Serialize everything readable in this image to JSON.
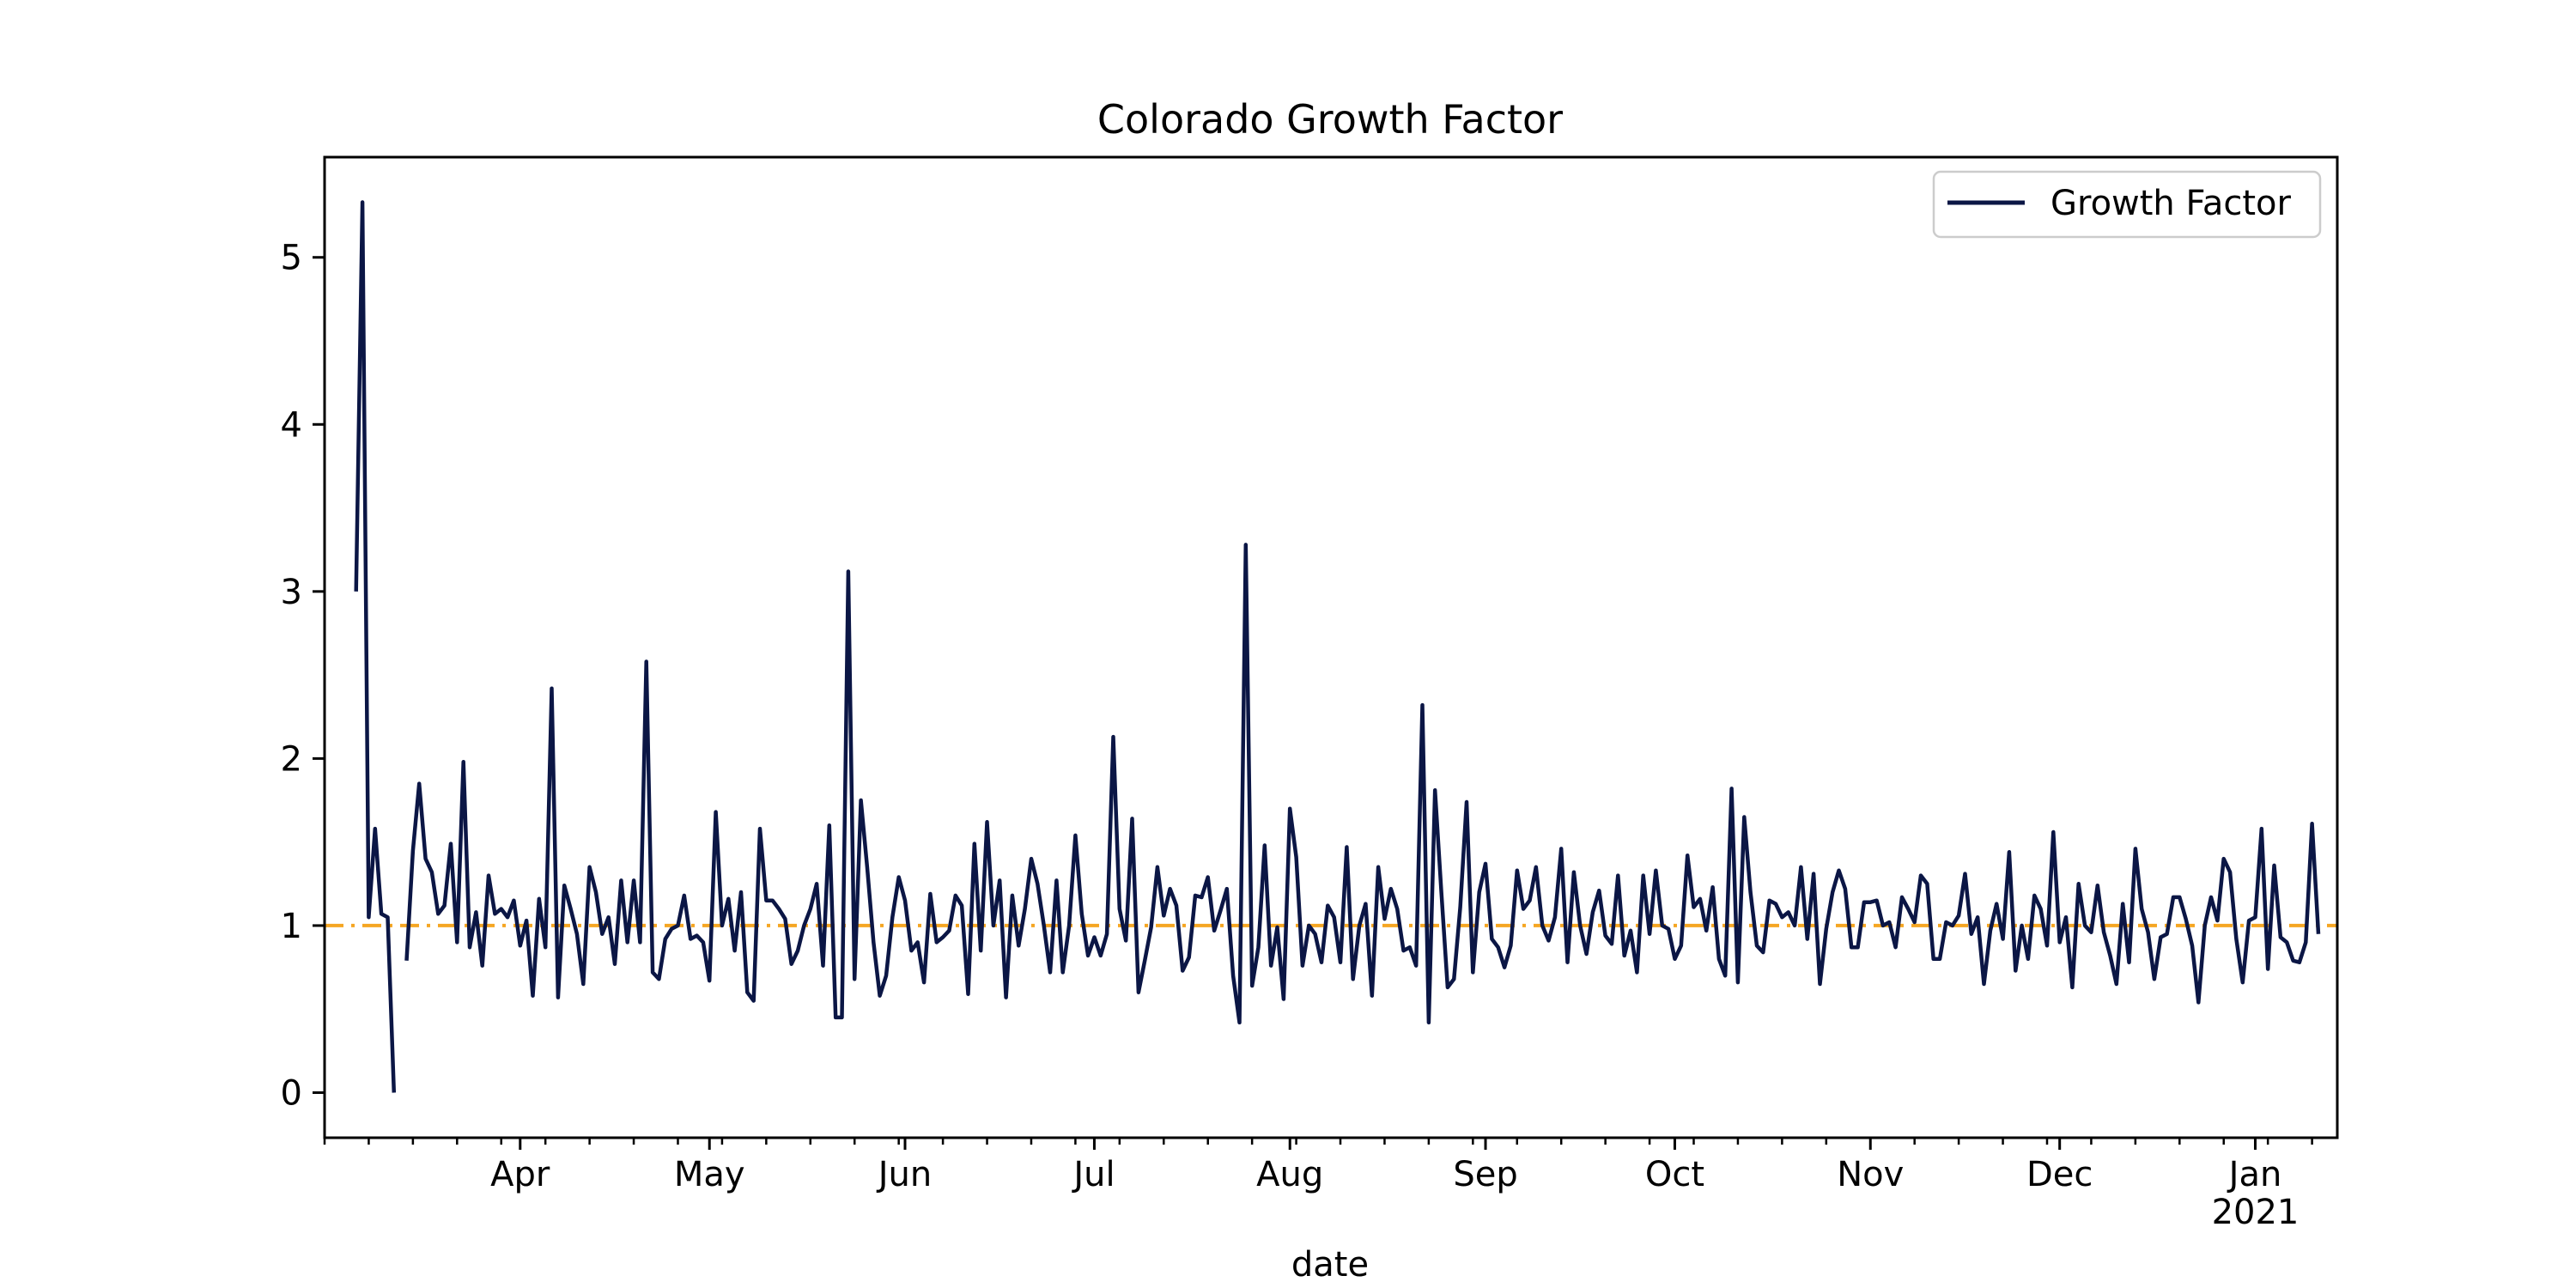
{
  "chart_data": {
    "type": "line",
    "title": "Colorado Growth Factor",
    "xlabel": "date",
    "ylabel": "",
    "x_start": "2020-03-06",
    "x_range": [
      "2020-03-01",
      "2021-01-14"
    ],
    "ylim": [
      -0.27,
      5.6
    ],
    "yticks": [
      0,
      1,
      2,
      3,
      4,
      5
    ],
    "xticks": [
      {
        "date": "2020-04-01",
        "label": "Apr",
        "sublabel": ""
      },
      {
        "date": "2020-05-01",
        "label": "May",
        "sublabel": ""
      },
      {
        "date": "2020-06-01",
        "label": "Jun",
        "sublabel": ""
      },
      {
        "date": "2020-07-01",
        "label": "Jul",
        "sublabel": ""
      },
      {
        "date": "2020-08-01",
        "label": "Aug",
        "sublabel": ""
      },
      {
        "date": "2020-09-01",
        "label": "Sep",
        "sublabel": ""
      },
      {
        "date": "2020-10-01",
        "label": "Oct",
        "sublabel": ""
      },
      {
        "date": "2020-11-01",
        "label": "Nov",
        "sublabel": ""
      },
      {
        "date": "2020-12-01",
        "label": "Dec",
        "sublabel": ""
      },
      {
        "date": "2021-01-01",
        "label": "Jan",
        "sublabel": "2021"
      }
    ],
    "grid": false,
    "legend_position": "top-right",
    "series": [
      {
        "name": "Growth Factor",
        "color": "#0b1645",
        "values": [
          3.0,
          5.33,
          1.05,
          1.58,
          1.07,
          1.05,
          0.0,
          null,
          0.79,
          1.45,
          1.85,
          1.4,
          1.32,
          1.07,
          1.12,
          1.49,
          0.9,
          1.98,
          0.87,
          1.08,
          0.76,
          1.3,
          1.07,
          1.1,
          1.05,
          1.15,
          0.88,
          1.03,
          0.58,
          1.16,
          0.87,
          2.42,
          0.57,
          1.24,
          1.1,
          0.95,
          0.65,
          1.35,
          1.2,
          0.95,
          1.05,
          0.77,
          1.27,
          0.9,
          1.27,
          0.9,
          2.58,
          0.72,
          0.68,
          0.92,
          0.98,
          1.0,
          1.18,
          0.92,
          0.94,
          0.9,
          0.67,
          1.68,
          1.0,
          1.16,
          0.85,
          1.2,
          0.6,
          0.55,
          1.58,
          1.15,
          1.15,
          1.1,
          1.04,
          0.77,
          0.85,
          1.0,
          1.1,
          1.25,
          0.76,
          1.6,
          0.45,
          0.45,
          3.12,
          0.68,
          1.75,
          1.35,
          0.9,
          0.58,
          0.7,
          1.05,
          1.29,
          1.15,
          0.85,
          0.9,
          0.66,
          1.19,
          0.9,
          0.93,
          0.97,
          1.18,
          1.12,
          0.59,
          1.49,
          0.85,
          1.62,
          1.0,
          1.27,
          0.57,
          1.18,
          0.88,
          1.1,
          1.4,
          1.25,
          1.0,
          0.72,
          1.27,
          0.72,
          1.0,
          1.54,
          1.07,
          0.82,
          0.93,
          0.82,
          0.95,
          2.13,
          1.1,
          0.91,
          1.64,
          0.6,
          0.79,
          0.99,
          1.35,
          1.06,
          1.22,
          1.12,
          0.73,
          0.81,
          1.18,
          1.17,
          1.29,
          0.97,
          1.09,
          1.22,
          0.7,
          0.42,
          3.28,
          0.64,
          0.87,
          1.48,
          0.76,
          0.99,
          0.56,
          1.7,
          1.41,
          0.76,
          1.0,
          0.95,
          0.78,
          1.12,
          1.05,
          0.78,
          1.47,
          0.68,
          1.0,
          1.13,
          0.58,
          1.35,
          1.04,
          1.22,
          1.1,
          0.85,
          0.87,
          0.76,
          2.32,
          0.42,
          1.81,
          1.2,
          0.63,
          0.68,
          1.11,
          1.74,
          0.72,
          1.2,
          1.37,
          0.92,
          0.87,
          0.75,
          0.88,
          1.33,
          1.1,
          1.15,
          1.35,
          1.0,
          0.91,
          1.05,
          1.46,
          0.78,
          1.32,
          1.0,
          0.83,
          1.08,
          1.21,
          0.94,
          0.89,
          1.3,
          0.82,
          0.97,
          0.72,
          1.3,
          0.95,
          1.33,
          1.0,
          0.98,
          0.8,
          0.88,
          1.42,
          1.11,
          1.16,
          0.97,
          1.23,
          0.8,
          0.7,
          1.82,
          0.66,
          1.65,
          1.2,
          0.88,
          0.84,
          1.15,
          1.13,
          1.05,
          1.08,
          1.0,
          1.35,
          0.92,
          1.31,
          0.65,
          0.98,
          1.2,
          1.33,
          1.22,
          0.87,
          0.87,
          1.14,
          1.14,
          1.15,
          1.0,
          1.02,
          0.87,
          1.17,
          1.1,
          1.02,
          1.3,
          1.25,
          0.8,
          0.8,
          1.02,
          1.0,
          1.06,
          1.31,
          0.95,
          1.05,
          0.65,
          0.97,
          1.13,
          0.92,
          1.44,
          0.73,
          1.0,
          0.8,
          1.18,
          1.1,
          0.88,
          1.56,
          0.9,
          1.05,
          0.63,
          1.25,
          1.0,
          0.96,
          1.24,
          0.96,
          0.82,
          0.65,
          1.13,
          0.78,
          1.46,
          1.1,
          0.96,
          0.68,
          0.93,
          0.95,
          1.17,
          1.17,
          1.04,
          0.88,
          0.54,
          1.0,
          1.17,
          1.03,
          1.4,
          1.32,
          0.92,
          0.66,
          1.03,
          1.05,
          1.58,
          0.74,
          1.36,
          0.93,
          0.9,
          0.79,
          0.78,
          0.9,
          1.61,
          0.95
        ]
      }
    ],
    "reference_line": {
      "y": 1.0,
      "color": "#f5a623",
      "style": "dash-dot"
    }
  }
}
